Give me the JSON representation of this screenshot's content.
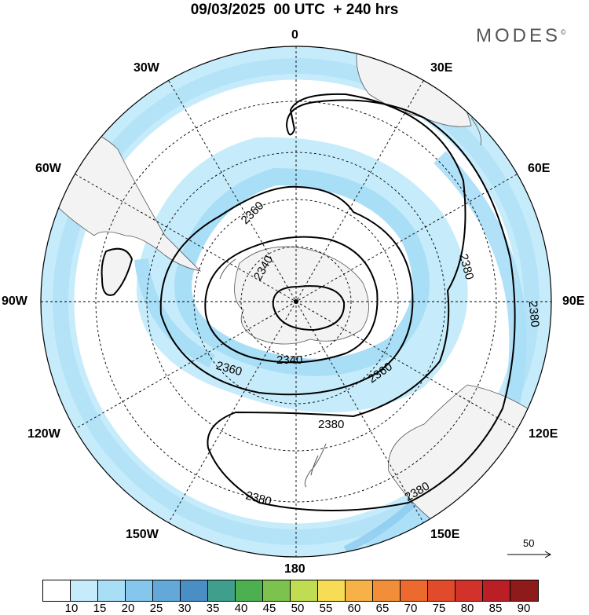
{
  "title": "09/03/2025  00 UTC  + 240 hrs",
  "brand": "MODES",
  "brand_mark": "©",
  "longitude_labels": {
    "lon_0": "0",
    "lon_30e": "30E",
    "lon_60e": "60E",
    "lon_90e": "90E",
    "lon_120e": "120E",
    "lon_150e": "150E",
    "lon_180": "180",
    "lon_150w": "150W",
    "lon_120w": "120W",
    "lon_90w": "90W",
    "lon_60w": "60W",
    "lon_30w": "30W"
  },
  "contour_labels": [
    "2340",
    "2340",
    "2360",
    "2360",
    "2360",
    "2380",
    "2380",
    "2380",
    "2380",
    "2380"
  ],
  "wind_reference": {
    "value": "50",
    "icon": "arrow-right-icon"
  },
  "colorbar": {
    "colors": [
      "#ffffff",
      "#c6ecfb",
      "#a9def7",
      "#84c6ec",
      "#62a9da",
      "#4a8ec6",
      "#3f9e8c",
      "#4caf50",
      "#7dc24e",
      "#c0dc52",
      "#f7dc55",
      "#f6b246",
      "#f08e3a",
      "#ec6a2e",
      "#e14a2b",
      "#d3322a",
      "#b91f25",
      "#8f1a1a"
    ],
    "labels": [
      "10",
      "15",
      "20",
      "25",
      "30",
      "35",
      "40",
      "45",
      "50",
      "55",
      "60",
      "65",
      "70",
      "75",
      "80",
      "85",
      "90"
    ]
  },
  "colors": {
    "land": "#f3f3f3",
    "wind_light": "#c6ecfb",
    "wind_mid": "#a9def7",
    "wind_strong": "#84c6ec"
  }
}
